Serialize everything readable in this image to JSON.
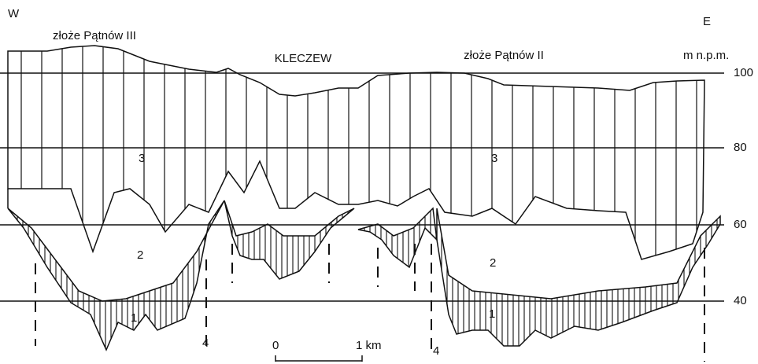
{
  "header": {
    "west": "W",
    "east": "E",
    "unit": "m n.p.m."
  },
  "labels": {
    "deposit_west": "złoże Pątnów III",
    "town": "KLECZEW",
    "deposit_east": "złoże Pątnów II"
  },
  "elevations": [
    100,
    80,
    60,
    40
  ],
  "layers": [
    "3",
    "3",
    "2",
    "2",
    "1",
    "1"
  ],
  "faults": [
    "4",
    "4"
  ],
  "scale": {
    "start": "0",
    "end": "1 km"
  }
}
